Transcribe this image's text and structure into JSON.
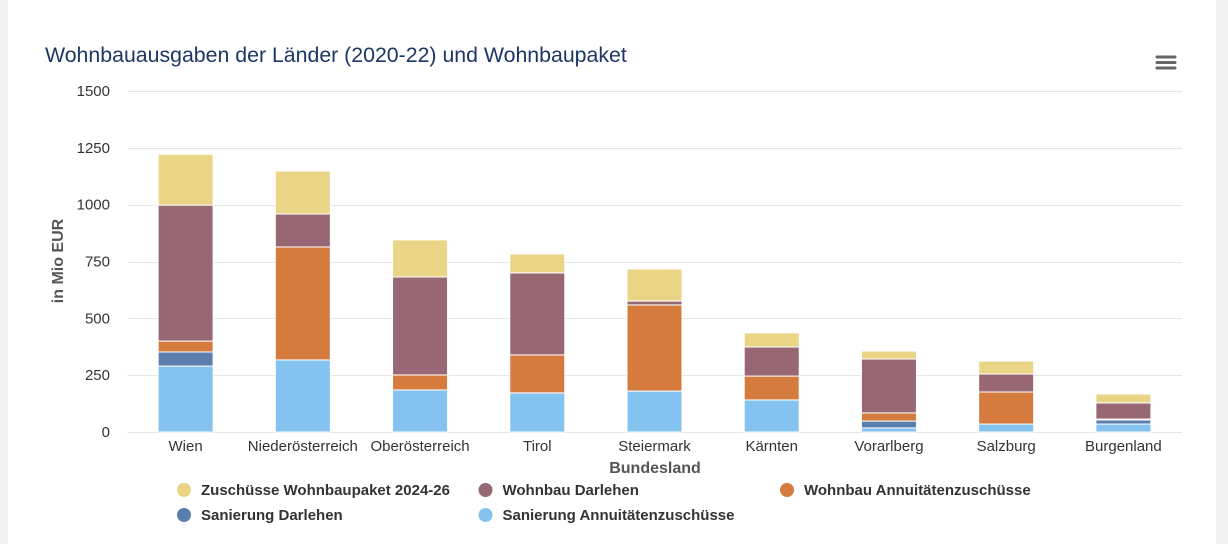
{
  "menu": {
    "icon": "hamburger-menu-icon"
  },
  "chart_data": {
    "type": "bar",
    "stacked": true,
    "title": "Wohnbauausgaben der Länder (2020-22) und Wohnbaupaket",
    "xlabel": "Bundesland",
    "ylabel": "in Mio EUR",
    "ylim": [
      0,
      1500
    ],
    "yticks": [
      0,
      250,
      500,
      750,
      1000,
      1250,
      1500
    ],
    "grid": true,
    "legend_position": "bottom",
    "categories": [
      "Wien",
      "Niederösterreich",
      "Oberösterreich",
      "Tirol",
      "Steiermark",
      "Kärnten",
      "Vorarlberg",
      "Salzburg",
      "Burgenland"
    ],
    "series": [
      {
        "name": "Zuschüsse Wohnbaupaket 2024-26",
        "color": "#e9d585",
        "values": [
          223,
          189,
          163,
          83,
          141,
          62,
          35,
          57,
          39
        ]
      },
      {
        "name": "Wohnbau Darlehen",
        "color": "#976773",
        "values": [
          598,
          145,
          431,
          361,
          17,
          128,
          237,
          79,
          71
        ]
      },
      {
        "name": "Wohnbau Annuitätenzuschüsse",
        "color": "#d47b3d",
        "values": [
          48,
          497,
          66,
          167,
          379,
          105,
          36,
          141,
          4
        ]
      },
      {
        "name": "Sanierung Darlehen",
        "color": "#5b7eae",
        "values": [
          62,
          0,
          0,
          0,
          0,
          0,
          30,
          0,
          18
        ]
      },
      {
        "name": "Sanierung Annuitätenzuschüsse",
        "color": "#84c3f0",
        "values": [
          290,
          317,
          185,
          172,
          180,
          141,
          18,
          35,
          35
        ]
      }
    ]
  }
}
